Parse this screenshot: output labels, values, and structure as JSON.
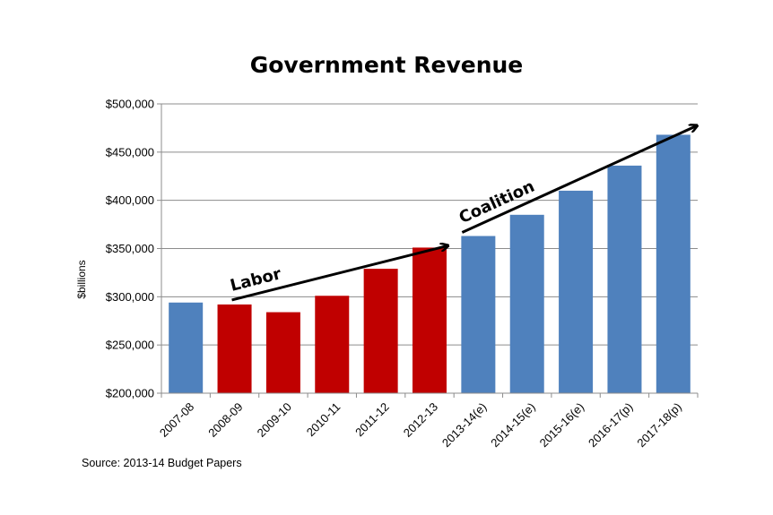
{
  "chart_data": {
    "type": "bar",
    "title": "Government Revenue",
    "ylabel": "$billions",
    "xlabel": "",
    "ylim": [
      200000,
      500000
    ],
    "yticks": [
      200000,
      250000,
      300000,
      350000,
      400000,
      450000,
      500000
    ],
    "ytick_labels": [
      "$200,000",
      "$250,000",
      "$300,000",
      "$350,000",
      "$400,000",
      "$450,000",
      "$500,000"
    ],
    "categories": [
      "2007-08",
      "2008-09",
      "2009-10",
      "2010-11",
      "2011-12",
      "2012-13",
      "2013-14(e)",
      "2014-15(e)",
      "2015-16(e)",
      "2016-17(p)",
      "2017-18(p)"
    ],
    "values": [
      294000,
      292000,
      284000,
      301000,
      329000,
      351000,
      363000,
      385000,
      410000,
      436000,
      468000
    ],
    "bar_colors": [
      "#4F81BD",
      "#C00000",
      "#C00000",
      "#C00000",
      "#C00000",
      "#C00000",
      "#4F81BD",
      "#4F81BD",
      "#4F81BD",
      "#4F81BD",
      "#4F81BD"
    ],
    "grid": true,
    "annotations": [
      {
        "text": "Labor",
        "from_category": "2008-09",
        "to_category": "2012-13"
      },
      {
        "text": "Coalition",
        "from_category": "2013-14(e)",
        "to_category": "2017-18(p)"
      }
    ]
  },
  "source": "Source: 2013-14 Budget Papers"
}
